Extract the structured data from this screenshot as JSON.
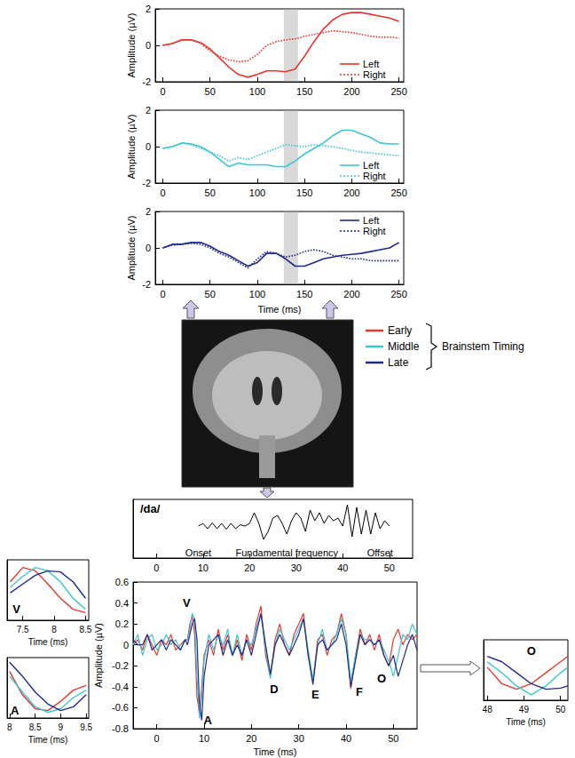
{
  "chart_data": [
    {
      "type": "line",
      "x": [
        0,
        10,
        20,
        30,
        40,
        50,
        60,
        70,
        80,
        90,
        100,
        110,
        120,
        130,
        140,
        150,
        160,
        170,
        180,
        190,
        200,
        210,
        220,
        230,
        240,
        250
      ],
      "series": [
        {
          "name": "Left",
          "color": "#e8372c",
          "line_style": "solid",
          "values": [
            0,
            0.1,
            0.3,
            0.3,
            0.15,
            -0.2,
            -0.7,
            -1.2,
            -1.6,
            -1.75,
            -1.6,
            -1.4,
            -1.4,
            -1.45,
            -1.3,
            -0.6,
            0.2,
            0.9,
            1.4,
            1.7,
            1.8,
            1.8,
            1.7,
            1.6,
            1.5,
            1.3
          ]
        },
        {
          "name": "Right",
          "color": "#e8372c",
          "line_style": "dotted",
          "values": [
            0,
            0.1,
            0.3,
            0.3,
            0.1,
            -0.3,
            -0.6,
            -0.8,
            -0.9,
            -0.85,
            -0.5,
            0,
            0.2,
            0.3,
            0.35,
            0.5,
            0.6,
            0.7,
            0.8,
            0.75,
            0.7,
            0.6,
            0.5,
            0.45,
            0.45,
            0.4
          ]
        }
      ],
      "xlim": [
        -8,
        255
      ],
      "ylim": [
        -2,
        2
      ],
      "xticks": [
        0,
        50,
        100,
        150,
        200,
        250
      ],
      "yticks": [
        -2,
        0,
        2
      ],
      "ylabel": "Amplitude (µV)",
      "grid": false,
      "legend": "lower right",
      "highlight": {
        "x": [
          128,
          143
        ]
      }
    },
    {
      "type": "line",
      "x": [
        0,
        10,
        20,
        30,
        40,
        50,
        60,
        70,
        80,
        90,
        100,
        110,
        120,
        130,
        140,
        150,
        160,
        170,
        180,
        190,
        200,
        210,
        220,
        230,
        240,
        250
      ],
      "series": [
        {
          "name": "Left",
          "color": "#3cc6d2",
          "line_style": "solid",
          "values": [
            -0.1,
            0,
            0.2,
            0.15,
            0,
            -0.3,
            -0.7,
            -1.1,
            -0.9,
            -1.0,
            -1.0,
            -1.0,
            -1.1,
            -1.1,
            -0.8,
            -0.4,
            -0.1,
            0.2,
            0.6,
            0.9,
            0.9,
            0.7,
            0.5,
            0.2,
            0.15,
            0.15
          ]
        },
        {
          "name": "Right",
          "color": "#3cc6d2",
          "line_style": "dotted",
          "values": [
            -0.1,
            0,
            0.2,
            0.1,
            -0.1,
            -0.3,
            -0.5,
            -0.8,
            -0.6,
            -0.7,
            -0.5,
            -0.3,
            -0.1,
            0.1,
            0.05,
            0,
            0.1,
            0.05,
            0,
            -0.1,
            -0.2,
            -0.3,
            -0.35,
            -0.4,
            -0.45,
            -0.5
          ]
        }
      ],
      "xlim": [
        -8,
        255
      ],
      "ylim": [
        -2,
        2
      ],
      "xticks": [
        0,
        50,
        100,
        150,
        200,
        250
      ],
      "yticks": [
        -2,
        0,
        2
      ],
      "ylabel": "Amplitude (µV)",
      "grid": false,
      "legend": "lower right",
      "highlight": {
        "x": [
          128,
          143
        ]
      }
    },
    {
      "type": "line",
      "x": [
        0,
        10,
        20,
        30,
        40,
        50,
        60,
        70,
        80,
        90,
        100,
        110,
        120,
        130,
        140,
        150,
        160,
        170,
        180,
        190,
        200,
        210,
        220,
        230,
        240,
        250
      ],
      "series": [
        {
          "name": "Left",
          "color": "#1f2a8c",
          "line_style": "solid",
          "values": [
            0,
            0.2,
            0.2,
            0.3,
            0.3,
            0.1,
            -0.2,
            -0.4,
            -0.7,
            -1.0,
            -0.8,
            -0.3,
            -0.3,
            -0.6,
            -1.0,
            -1.0,
            -0.8,
            -0.6,
            -0.5,
            -0.4,
            -0.35,
            -0.3,
            -0.2,
            -0.1,
            0,
            0.3
          ]
        },
        {
          "name": "Right",
          "color": "#1f2a8c",
          "line_style": "dotted",
          "values": [
            0,
            0.15,
            0.2,
            0.25,
            0.2,
            0,
            -0.3,
            -0.5,
            -0.8,
            -1.1,
            -0.6,
            -0.2,
            -0.3,
            -0.5,
            -0.4,
            -0.2,
            -0.1,
            -0.2,
            -0.4,
            -0.5,
            -0.6,
            -0.6,
            -0.7,
            -0.7,
            -0.7,
            -0.7
          ]
        }
      ],
      "xlim": [
        -8,
        255
      ],
      "ylim": [
        -2,
        2
      ],
      "xticks": [
        0,
        50,
        100,
        150,
        200,
        250
      ],
      "yticks": [
        -2,
        0,
        2
      ],
      "xlabel": "Time (ms)",
      "ylabel": "Amplitude (µV)",
      "grid": false,
      "legend": "upper right",
      "highlight": {
        "x": [
          128,
          143
        ]
      }
    },
    {
      "type": "line",
      "title": "/da/",
      "x": [
        9,
        10,
        11,
        12,
        13,
        14,
        15,
        16,
        17,
        18,
        19,
        20,
        21,
        22,
        23,
        24,
        25,
        26,
        27,
        28,
        29,
        30,
        31,
        32,
        33,
        34,
        35,
        36,
        37,
        38,
        39,
        40,
        41,
        42,
        43,
        44,
        45,
        46,
        47,
        48,
        49,
        50
      ],
      "series": [
        {
          "color": "#000000",
          "line_style": "solid",
          "values": [
            0,
            0.1,
            -0.1,
            0.12,
            -0.1,
            0.1,
            -0.12,
            0.1,
            -0.1,
            0.05,
            0,
            0.1,
            0.5,
            0.1,
            -0.5,
            -0.2,
            0.3,
            0.4,
            0.1,
            -0.3,
            0.2,
            0.5,
            0.3,
            -0.2,
            0.6,
            0.2,
            0.5,
            0.1,
            0.4,
            0.2,
            0.3,
            0,
            0.8,
            -0.4,
            0.7,
            -0.3,
            0.6,
            -0.3,
            0.5,
            -0.1,
            0.2,
            0
          ]
        }
      ],
      "xlim": [
        -5,
        55
      ],
      "ylim": [
        -1.2,
        1
      ],
      "xticks": [
        0,
        10,
        20,
        30,
        40,
        50
      ],
      "tick_labels": "x",
      "grid": false,
      "annotations": [
        {
          "text": "Onset",
          "x": 9,
          "y": -1.0
        },
        {
          "text": "Fundamental frequency",
          "x": 28,
          "y": -1.0
        },
        {
          "text": "Offset",
          "x": 48,
          "y": -1.0
        }
      ]
    },
    {
      "type": "line",
      "legend_title": "Brainstem Timing",
      "x": [
        -5,
        -4,
        -3,
        -2,
        -1,
        0,
        1,
        2,
        3,
        4,
        5,
        6,
        6.5,
        7,
        7.5,
        8,
        8.5,
        9,
        9.5,
        10,
        11,
        12,
        13,
        14,
        15,
        16,
        17,
        18,
        19,
        20,
        21,
        22,
        23,
        24,
        25,
        26,
        27,
        28,
        29,
        30,
        31,
        32,
        33,
        34,
        35,
        36,
        37,
        38,
        39,
        40,
        41,
        42,
        43,
        44,
        45,
        46,
        47,
        48,
        49,
        50,
        51,
        52,
        53,
        54,
        55
      ],
      "series": [
        {
          "name": "Early",
          "color": "#e8372c",
          "line_style": "solid",
          "values": [
            0,
            0.05,
            -0.05,
            0.1,
            0,
            -0.1,
            0.05,
            0,
            0.1,
            -0.05,
            0,
            0.05,
            0.05,
            0.2,
            0.28,
            0.1,
            -0.5,
            -0.65,
            -0.4,
            -0.1,
            0.05,
            -0.1,
            0.15,
            -0.05,
            0.1,
            -0.1,
            0.05,
            -0.15,
            0.1,
            -0.05,
            0.2,
            0.37,
            -0.1,
            -0.3,
            0.05,
            0.2,
            0,
            -0.1,
            0.1,
            0.2,
            0.3,
            -0.1,
            -0.35,
            0.05,
            0.1,
            -0.1,
            0.05,
            0.1,
            0.3,
            0.1,
            -0.42,
            -0.1,
            0.15,
            0,
            0.1,
            -0.05,
            0.1,
            -0.1,
            -0.2,
            0.05,
            0.15,
            0,
            0.1,
            0.05,
            0.1
          ]
        },
        {
          "name": "Middle",
          "color": "#3cc6d2",
          "line_style": "solid",
          "values": [
            0,
            0.1,
            -0.1,
            0.05,
            0.1,
            -0.05,
            0,
            0.1,
            0,
            0.05,
            -0.05,
            0.05,
            0.05,
            0.15,
            0.3,
            0.25,
            -0.3,
            -0.7,
            -0.5,
            -0.15,
            0.1,
            -0.05,
            0.1,
            0,
            0.15,
            -0.1,
            0.1,
            -0.1,
            0.05,
            0,
            0.15,
            0.3,
            -0.05,
            -0.32,
            0,
            0.15,
            0.05,
            -0.05,
            0.05,
            0.15,
            0.25,
            -0.05,
            -0.33,
            0,
            0.15,
            -0.05,
            0,
            0.1,
            0.25,
            0.1,
            -0.35,
            -0.1,
            0.1,
            0.05,
            0.05,
            0,
            0.05,
            -0.05,
            -0.15,
            -0.3,
            -0.1,
            0.1,
            0.05,
            0.2,
            0.1
          ]
        },
        {
          "name": "Late",
          "color": "#1f2a8c",
          "line_style": "solid",
          "values": [
            0.05,
            0,
            0,
            0.1,
            -0.05,
            0,
            0.05,
            -0.05,
            0.05,
            0,
            -0.05,
            0.05,
            0,
            0.1,
            0.2,
            0.25,
            0.05,
            -0.55,
            -0.72,
            -0.3,
            0,
            0.05,
            0.1,
            -0.1,
            0.05,
            -0.1,
            0,
            -0.1,
            0.05,
            -0.1,
            0.1,
            0.3,
            0,
            -0.28,
            0,
            0.1,
            0,
            -0.1,
            0,
            0.1,
            0.25,
            -0.1,
            -0.38,
            0,
            0.05,
            -0.05,
            0,
            0.05,
            0.2,
            0,
            -0.4,
            -0.15,
            0.1,
            0,
            0.05,
            0,
            0.05,
            -0.1,
            -0.2,
            -0.1,
            -0.3,
            -0.15,
            0,
            0.1,
            -0.05
          ]
        }
      ],
      "xlim": [
        -5,
        55
      ],
      "ylim": [
        -0.8,
        0.6
      ],
      "xticks": [
        0,
        10,
        20,
        30,
        40,
        50
      ],
      "yticks": [
        -0.8,
        -0.6,
        -0.4,
        -0.2,
        0,
        0.2,
        0.4,
        0.6
      ],
      "xlabel": "Time (ms)",
      "ylabel": "Amplitude (µV)",
      "grid": false,
      "annotations": [
        {
          "text": "V",
          "x": 6.3,
          "y": 0.4
        },
        {
          "text": "A",
          "x": 10.8,
          "y": -0.72
        },
        {
          "text": "D",
          "x": 24.8,
          "y": -0.42
        },
        {
          "text": "E",
          "x": 33.5,
          "y": -0.47
        },
        {
          "text": "F",
          "x": 42.8,
          "y": -0.45
        },
        {
          "text": "O",
          "x": 47.5,
          "y": -0.32
        }
      ]
    },
    {
      "type": "line",
      "x": [
        7.3,
        7.5,
        7.7,
        7.9,
        8.1,
        8.3,
        8.5
      ],
      "series": [
        {
          "name": "Early",
          "color": "#e8372c",
          "line_style": "solid",
          "values": [
            0.2,
            0.33,
            0.3,
            0.18,
            0.05,
            -0.05,
            -0.08
          ]
        },
        {
          "name": "Middle",
          "color": "#3cc6d2",
          "line_style": "solid",
          "values": [
            0.15,
            0.25,
            0.33,
            0.3,
            0.2,
            0.05,
            -0.05
          ]
        },
        {
          "name": "Late",
          "color": "#1f2a8c",
          "line_style": "solid",
          "values": [
            0.1,
            0.18,
            0.26,
            0.3,
            0.29,
            0.2,
            0.05
          ]
        }
      ],
      "xlim": [
        7.25,
        8.55
      ],
      "ylim": [
        -0.15,
        0.4
      ],
      "xticks": [
        7.5,
        8,
        8.5
      ],
      "tick_labels": "x",
      "xlabel": "Time (ms)",
      "grid": false,
      "annotations": [
        {
          "text": "V",
          "x": 7.4,
          "y": -0.05
        }
      ]
    },
    {
      "type": "line",
      "x": [
        8,
        8.25,
        8.5,
        8.75,
        9,
        9.25,
        9.5
      ],
      "series": [
        {
          "name": "Early",
          "color": "#e8372c",
          "line_style": "solid",
          "values": [
            -0.3,
            -0.55,
            -0.7,
            -0.72,
            -0.62,
            -0.5,
            -0.45
          ]
        },
        {
          "name": "Middle",
          "color": "#3cc6d2",
          "line_style": "solid",
          "values": [
            -0.35,
            -0.52,
            -0.68,
            -0.74,
            -0.7,
            -0.58,
            -0.5
          ]
        },
        {
          "name": "Late",
          "color": "#1f2a8c",
          "line_style": "solid",
          "values": [
            -0.2,
            -0.35,
            -0.52,
            -0.65,
            -0.72,
            -0.68,
            -0.55
          ]
        }
      ],
      "xlim": [
        7.95,
        9.55
      ],
      "ylim": [
        -0.8,
        -0.15
      ],
      "xticks": [
        8,
        8.5,
        9,
        9.5
      ],
      "tick_labels": "x",
      "xlabel": "Time (ms)",
      "grid": false,
      "annotations": [
        {
          "text": "A",
          "x": 8.1,
          "y": -0.72
        }
      ]
    },
    {
      "type": "line",
      "x": [
        48,
        48.4,
        48.8,
        49.2,
        49.6,
        50,
        50.2
      ],
      "series": [
        {
          "name": "Early",
          "color": "#e8372c",
          "line_style": "solid",
          "values": [
            -0.05,
            -0.2,
            -0.25,
            -0.2,
            -0.1,
            0,
            0.05
          ]
        },
        {
          "name": "Middle",
          "color": "#3cc6d2",
          "line_style": "solid",
          "values": [
            0,
            -0.1,
            -0.22,
            -0.3,
            -0.22,
            -0.1,
            -0.05
          ]
        },
        {
          "name": "Late",
          "color": "#1f2a8c",
          "line_style": "solid",
          "values": [
            0.05,
            0,
            -0.1,
            -0.2,
            -0.25,
            -0.24,
            -0.22
          ]
        }
      ],
      "xlim": [
        47.9,
        50.2
      ],
      "ylim": [
        -0.35,
        0.2
      ],
      "xticks": [
        48,
        49,
        50
      ],
      "tick_labels": "x",
      "xlabel": "Time (ms)",
      "grid": false,
      "annotations": [
        {
          "text": "O",
          "x": 49.2,
          "y": 0.1
        }
      ]
    }
  ]
}
